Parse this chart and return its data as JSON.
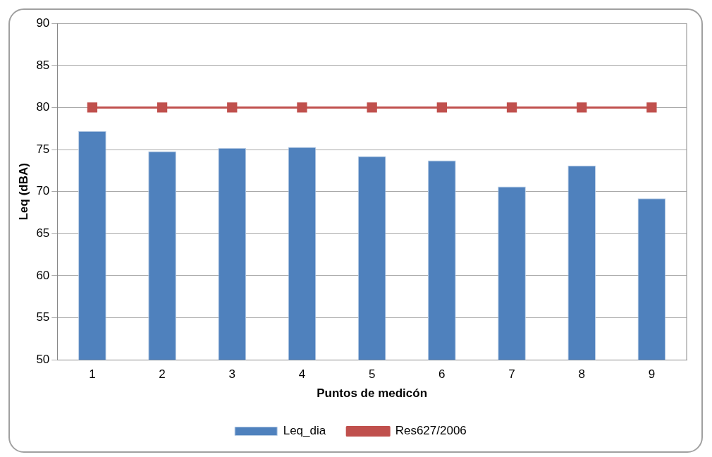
{
  "chart_data": {
    "type": "bar",
    "xlabel": "Puntos de medicón",
    "ylabel": "Leq (dBA)",
    "categories": [
      "1",
      "2",
      "3",
      "4",
      "5",
      "6",
      "7",
      "8",
      "9"
    ],
    "series": [
      {
        "name": "Leq_dia",
        "color": "#4f81bd",
        "values": [
          77.2,
          74.8,
          75.2,
          75.3,
          74.2,
          73.7,
          70.6,
          73.1,
          69.2
        ]
      },
      {
        "name": "Res627/2006",
        "type": "line",
        "color": "#c0504d",
        "marker": "square",
        "values": [
          80,
          80,
          80,
          80,
          80,
          80,
          80,
          80,
          80
        ]
      }
    ],
    "ylim": [
      50,
      90
    ],
    "yticks": [
      50,
      55,
      60,
      65,
      70,
      75,
      80,
      85,
      90
    ],
    "grid": "y",
    "legend": "bottom"
  }
}
